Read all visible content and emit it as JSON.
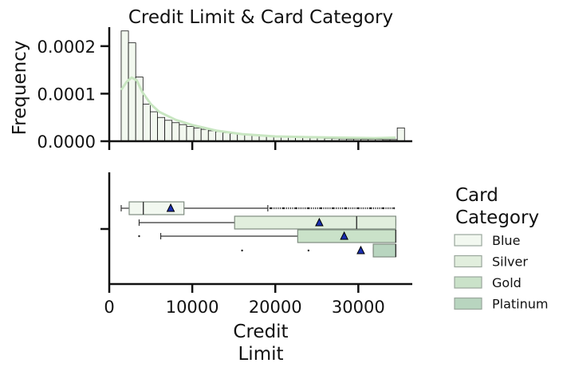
{
  "chart_data": [
    {
      "type": "histogram",
      "title": "Credit Limit & Card Category",
      "ylabel": "Frequency",
      "xlim": [
        0,
        36500
      ],
      "ylim": [
        0,
        0.00024
      ],
      "y_ticks": [
        0,
        0.0001,
        0.0002
      ],
      "y_tick_labels": [
        "0.0000",
        "0.0001",
        "0.0002"
      ],
      "x_ticks": [
        0,
        10000,
        20000,
        30000
      ],
      "bin_width": 875,
      "bin_start": 1438,
      "frequencies": [
        0.000232,
        0.000207,
        0.000135,
        7.8e-05,
        6.2e-05,
        5e-05,
        4.4e-05,
        3.9e-05,
        3.5e-05,
        3.1e-05,
        2.8e-05,
        2.5e-05,
        2.2e-05,
        2e-05,
        1.8e-05,
        1.6e-05,
        1.5e-05,
        1.3e-05,
        1.2e-05,
        1.1e-05,
        1e-05,
        9.5e-06,
        9e-06,
        8.5e-06,
        8e-06,
        7.5e-06,
        7e-06,
        6.5e-06,
        6e-06,
        5.5e-06,
        5e-06,
        4.5e-06,
        4.5e-06,
        4e-06,
        4e-06,
        4e-06,
        3.5e-06,
        3.5e-06,
        2.8e-05
      ],
      "kde": {
        "x": [
          1438,
          2100,
          2700,
          3300,
          4000,
          5000,
          6000,
          8000,
          10000,
          13000,
          16000,
          20000,
          24000,
          28000,
          32000,
          34500
        ],
        "y": [
          0.000108,
          0.000125,
          0.000134,
          0.000128,
          0.000103,
          7.8e-05,
          6.2e-05,
          4.5e-05,
          3.4e-05,
          2.2e-05,
          1.5e-05,
          1e-05,
          8.5e-06,
          7.5e-06,
          6.5e-06,
          7.5e-06
        ]
      }
    },
    {
      "type": "boxplot",
      "xlabel": "Credit\nLimit",
      "xlim": [
        0,
        36500
      ],
      "x_ticks": [
        0,
        10000,
        20000,
        30000
      ],
      "x_tick_labels": [
        "0",
        "10000",
        "20000",
        "30000"
      ],
      "legend_title": "Card\nCategory",
      "legend_position": "right",
      "series": [
        {
          "name": "Blue",
          "color": "#f2f8f0",
          "whisker_low": 1438,
          "q1": 2400,
          "median": 4100,
          "q3": 9000,
          "whisker_high": 19100,
          "mean": 7400,
          "outliers": [
            19500,
            21000,
            22500,
            24000,
            25500,
            27000,
            28500,
            30000,
            31500,
            33000,
            34300
          ]
        },
        {
          "name": "Silver",
          "color": "#e1eedd",
          "whisker_low": 3600,
          "q1": 15100,
          "median": 29800,
          "q3": 34516,
          "whisker_high": 34516,
          "mean": 25300,
          "outliers": []
        },
        {
          "name": "Gold",
          "color": "#cae2c9",
          "whisker_low": 6200,
          "q1": 22700,
          "median": 34516,
          "q3": 34516,
          "whisker_high": 34516,
          "mean": 28300,
          "outliers": [
            3600
          ]
        },
        {
          "name": "Platinum",
          "color": "#b8d5bf",
          "whisker_low": 31800,
          "q1": 31800,
          "median": 34516,
          "q3": 34516,
          "whisker_high": 34516,
          "mean": 30300,
          "outliers": [
            16000,
            24000
          ]
        }
      ]
    }
  ]
}
